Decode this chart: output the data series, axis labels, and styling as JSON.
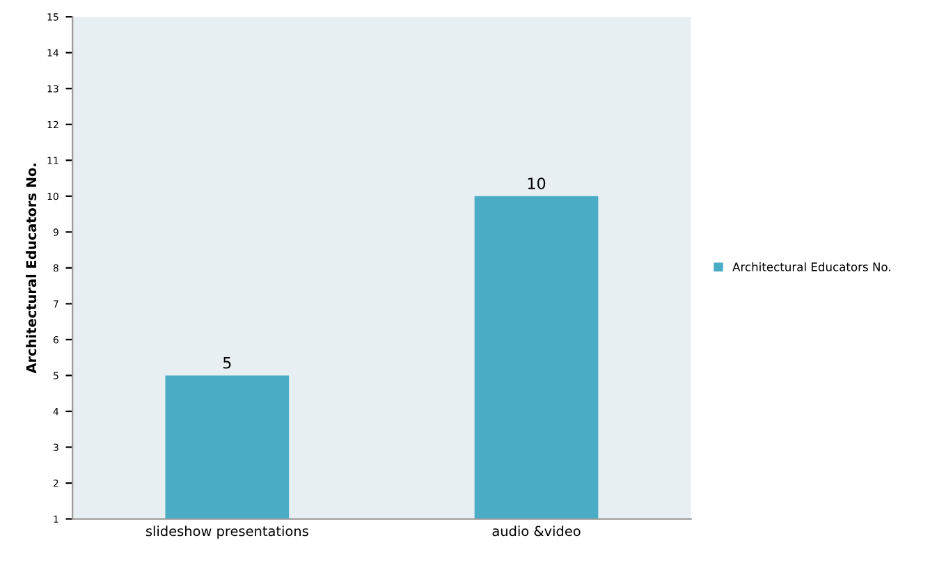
{
  "chart_data": {
    "type": "bar",
    "ylabel": "Architectural Educators No.",
    "categories": [
      "slideshow presentations",
      "audio &video"
    ],
    "series": [
      {
        "name": "Architectural Educators No.",
        "color": "#4bacc6",
        "values": [
          5,
          10
        ]
      }
    ],
    "ylim": [
      1,
      15
    ],
    "yticks": [
      1,
      2,
      3,
      4,
      5,
      6,
      7,
      8,
      9,
      10,
      11,
      12,
      13,
      14,
      15
    ],
    "data_labels": true,
    "legend": "right",
    "grid": false
  }
}
